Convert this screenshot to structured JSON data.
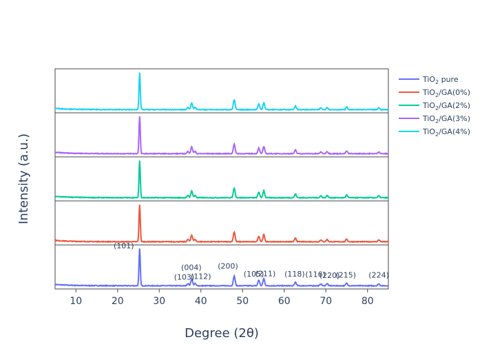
{
  "chart_data": {
    "type": "line",
    "layout": "stacked-panels",
    "xlabel": "Degree (2θ)",
    "ylabel": "Intensity (a.u.)",
    "xlim": [
      5,
      85
    ],
    "x_ticks": [
      10,
      20,
      30,
      40,
      50,
      60,
      70,
      80
    ],
    "grid": false,
    "legend_position": "top-right",
    "peak_positions": [
      25.3,
      36.9,
      37.8,
      38.6,
      48.0,
      53.9,
      55.1,
      62.7,
      68.8,
      70.3,
      75.0,
      82.7
    ],
    "peak_heights": [
      1.0,
      0.06,
      0.18,
      0.06,
      0.26,
      0.15,
      0.19,
      0.1,
      0.05,
      0.06,
      0.07,
      0.05
    ],
    "series": [
      {
        "name": "TiO₂ pure",
        "legend_main": "TiO",
        "legend_sub": "2",
        "legend_rest": " pure",
        "color": "#636efa",
        "panel": 1
      },
      {
        "name": "TiO₂/GA(0%)",
        "legend_main": "TiO",
        "legend_sub": "2",
        "legend_rest": "/GA(0%)",
        "color": "#ef553b",
        "panel": 2
      },
      {
        "name": "TiO₂/GA(2%)",
        "legend_main": "TiO",
        "legend_sub": "2",
        "legend_rest": "/GA(2%)",
        "color": "#00cc96",
        "panel": 3
      },
      {
        "name": "TiO₂/GA(3%)",
        "legend_main": "TiO",
        "legend_sub": "2",
        "legend_rest": "/GA(3%)",
        "color": "#ab63fa",
        "panel": 4
      },
      {
        "name": "TiO₂/GA(4%)",
        "legend_main": "TiO",
        "legend_sub": "2",
        "legend_rest": "/GA(4%)",
        "color": "#19d3f3",
        "panel": 5
      }
    ],
    "annotations": [
      {
        "text": "(101)",
        "x": 21.5,
        "level": 0.92
      },
      {
        "text": "(004)",
        "x": 37.7,
        "level": 0.43
      },
      {
        "text": "(103)",
        "x": 36.0,
        "level": 0.21
      },
      {
        "text": "(112)",
        "x": 40.0,
        "level": 0.23
      },
      {
        "text": "(200)",
        "x": 46.5,
        "level": 0.46
      },
      {
        "text": "(105)",
        "x": 52.7,
        "level": 0.28
      },
      {
        "text": "(211)",
        "x": 55.5,
        "level": 0.29
      },
      {
        "text": "(118)",
        "x": 62.5,
        "level": 0.28
      },
      {
        "text": "(116)",
        "x": 67.5,
        "level": 0.27
      },
      {
        "text": "(220)",
        "x": 70.9,
        "level": 0.25
      },
      {
        "text": "(215)",
        "x": 74.8,
        "level": 0.26
      },
      {
        "text": "(224)",
        "x": 82.7,
        "level": 0.26
      }
    ]
  }
}
